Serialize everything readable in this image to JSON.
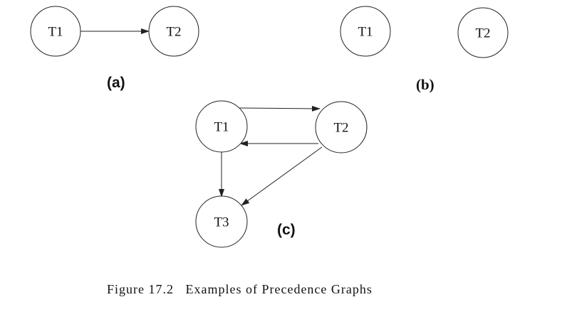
{
  "panels": {
    "a": {
      "label": "(a)",
      "nodes": {
        "t1": "T1",
        "t2": "T2"
      }
    },
    "b": {
      "label": "(b)",
      "nodes": {
        "t1": "T1",
        "t2": "T2"
      }
    },
    "c": {
      "label": "(c)",
      "nodes": {
        "t1": "T1",
        "t2": "T2",
        "t3": "T3"
      }
    }
  },
  "edges": [
    {
      "panel": "a",
      "from": "T1",
      "to": "T2"
    },
    {
      "panel": "c",
      "from": "T1",
      "to": "T2"
    },
    {
      "panel": "c",
      "from": "T2",
      "to": "T1"
    },
    {
      "panel": "c",
      "from": "T1",
      "to": "T3"
    },
    {
      "panel": "c",
      "from": "T2",
      "to": "T3"
    }
  ],
  "caption": "Figure 17.2   Examples of Precedence Graphs"
}
